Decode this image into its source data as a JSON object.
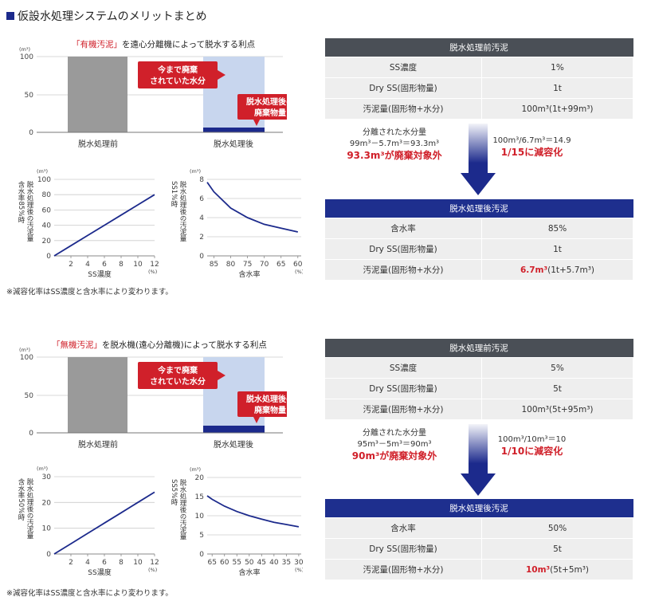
{
  "page_title": "仮設水処理システムのメリットまとめ",
  "colors": {
    "navy": "#1c2a8c",
    "red": "#d0202a",
    "gray": "#9a9a9a",
    "lightblue": "#c8d6ee",
    "table_header": "#4a4f56"
  },
  "sections": [
    {
      "title_highlight": "「有機汚泥」",
      "title_rest": "を遠心分離機によって脱水する利点",
      "bar_chart": {
        "unit": "(m³)",
        "ticks": [
          "100",
          "50",
          "0"
        ],
        "categories": [
          "脱水処理前",
          "脱水処理後"
        ],
        "callout_removed": [
          "今まで廃棄",
          "されていた水分"
        ],
        "callout_after": [
          "脱水処理後の",
          "廃棄物量"
        ]
      },
      "line_chart_ss": {
        "unit": "(m³)",
        "ylabel": "含水率85%時",
        "ylabel2": "脱水処理後の汚泥量",
        "yticks": [
          "0",
          "20",
          "40",
          "60",
          "80",
          "100"
        ],
        "xticks": [
          "2",
          "4",
          "6",
          "8",
          "10",
          "12"
        ],
        "xunit": "(%)",
        "xlabel": "SS濃度"
      },
      "line_chart_water": {
        "unit": "(m³)",
        "ylabel": "SS1%時",
        "ylabel2": "脱水処理後の汚泥量",
        "yticks": [
          "0",
          "2",
          "4",
          "6",
          "8"
        ],
        "xticks": [
          "85",
          "80",
          "75",
          "70",
          "65",
          "60"
        ],
        "xunit": "(%)",
        "xlabel": "含水率"
      },
      "note": "※減容化率はSS濃度と含水率により変わります。",
      "before_table": {
        "header": "脱水処理前汚泥",
        "rows": [
          {
            "label": "SS濃度",
            "value": "1%"
          },
          {
            "label": "Dry SS(固形物量)",
            "value": "1t"
          },
          {
            "label": "汚泥量(固形物+水分)",
            "value": "100m³(1t+99m³)"
          }
        ]
      },
      "flow": {
        "line1": "分離された水分量",
        "line2": "99m³－5.7m³＝93.3m³",
        "line3": "93.3m³が廃棄対象外",
        "ratio1": "100m³/6.7m³＝14.9",
        "ratio2": "1/15に減容化"
      },
      "after_table": {
        "header": "脱水処理後汚泥",
        "rows": [
          {
            "label": "含水率",
            "value": "85%"
          },
          {
            "label": "Dry SS(固形物量)",
            "value": "1t"
          },
          {
            "label": "汚泥量(固形物+水分)",
            "value_red": "6.7m³",
            "value": "(1t+5.7m³)"
          }
        ]
      }
    },
    {
      "title_highlight": "「無機汚泥」",
      "title_rest": "を脱水機(遠心分離機)によって脱水する利点",
      "bar_chart": {
        "unit": "(m³)",
        "ticks": [
          "100",
          "50",
          "0"
        ],
        "categories": [
          "脱水処理前",
          "脱水処理後"
        ],
        "callout_removed": [
          "今まで廃棄",
          "されていた水分"
        ],
        "callout_after": [
          "脱水処理後の",
          "廃棄物量"
        ]
      },
      "line_chart_ss": {
        "unit": "(m³)",
        "ylabel": "含水率50%時",
        "ylabel2": "脱水処理後の汚泥量",
        "yticks": [
          "0",
          "10",
          "20",
          "30"
        ],
        "xticks": [
          "2",
          "4",
          "6",
          "8",
          "10",
          "12"
        ],
        "xunit": "(%)",
        "xlabel": "SS濃度"
      },
      "line_chart_water": {
        "unit": "(m³)",
        "ylabel": "SS5%時",
        "ylabel2": "脱水処理後の汚泥量",
        "yticks": [
          "0",
          "5",
          "10",
          "15",
          "20"
        ],
        "xticks": [
          "65",
          "60",
          "55",
          "50",
          "45",
          "40",
          "35",
          "30"
        ],
        "xunit": "(%)",
        "xlabel": "含水率"
      },
      "note": "※減容化率はSS濃度と含水率により変わります。",
      "before_table": {
        "header": "脱水処理前汚泥",
        "rows": [
          {
            "label": "SS濃度",
            "value": "5%"
          },
          {
            "label": "Dry SS(固形物量)",
            "value": "5t"
          },
          {
            "label": "汚泥量(固形物+水分)",
            "value": "100m³(5t+95m³)"
          }
        ]
      },
      "flow": {
        "line1": "分離された水分量",
        "line2": "95m³－5m³＝90m³",
        "line3": "90m³が廃棄対象外",
        "ratio1": "100m³/10m³＝10",
        "ratio2": "1/10に減容化"
      },
      "after_table": {
        "header": "脱水処理後汚泥",
        "rows": [
          {
            "label": "含水率",
            "value": "50%"
          },
          {
            "label": "Dry SS(固形物量)",
            "value": "5t"
          },
          {
            "label": "汚泥量(固形物+水分)",
            "value_red": "10m³",
            "value": "(5t+5m³)"
          }
        ]
      }
    }
  ],
  "chart_data": [
    {
      "type": "bar",
      "categories": [
        "脱水処理前",
        "脱水処理後"
      ],
      "series": [
        {
          "values": [
            100,
            6.7
          ]
        }
      ],
      "removed_water": 93.3,
      "ylim": [
        0,
        100
      ]
    },
    {
      "type": "line",
      "xlabel": "SS濃度",
      "ylabel": "含水率85%時 脱水処理後の汚泥量",
      "x": [
        0,
        2,
        4,
        6,
        8,
        10,
        12
      ],
      "values": [
        0,
        13.3,
        26.7,
        40,
        53.3,
        66.7,
        80
      ],
      "xlim": [
        0,
        12
      ],
      "ylim": [
        0,
        100
      ]
    },
    {
      "type": "line",
      "xlabel": "含水率",
      "ylabel": "SS1%時 脱水処理後の汚泥量",
      "x": [
        87,
        85,
        80,
        75,
        70,
        65,
        60
      ],
      "values": [
        7.7,
        6.7,
        5.0,
        4.0,
        3.3,
        2.9,
        2.5
      ],
      "xlim": [
        87,
        59
      ],
      "ylim": [
        0,
        8
      ]
    },
    {
      "type": "bar",
      "categories": [
        "脱水処理前",
        "脱水処理後"
      ],
      "series": [
        {
          "values": [
            100,
            10
          ]
        }
      ],
      "removed_water": 90,
      "ylim": [
        0,
        100
      ]
    },
    {
      "type": "line",
      "xlabel": "SS濃度",
      "ylabel": "含水率50%時 脱水処理後の汚泥量",
      "x": [
        0,
        2,
        4,
        6,
        8,
        10,
        12
      ],
      "values": [
        0,
        4,
        8,
        12,
        16,
        20,
        24
      ],
      "xlim": [
        0,
        12
      ],
      "ylim": [
        0,
        30
      ]
    },
    {
      "type": "line",
      "xlabel": "含水率",
      "ylabel": "SS5%時 脱水処理後の汚泥量",
      "x": [
        67,
        65,
        60,
        55,
        50,
        45,
        40,
        35,
        30
      ],
      "values": [
        15.2,
        14.3,
        12.5,
        11.1,
        10.0,
        9.1,
        8.3,
        7.7,
        7.1
      ],
      "xlim": [
        67,
        29
      ],
      "ylim": [
        0,
        20
      ]
    }
  ]
}
